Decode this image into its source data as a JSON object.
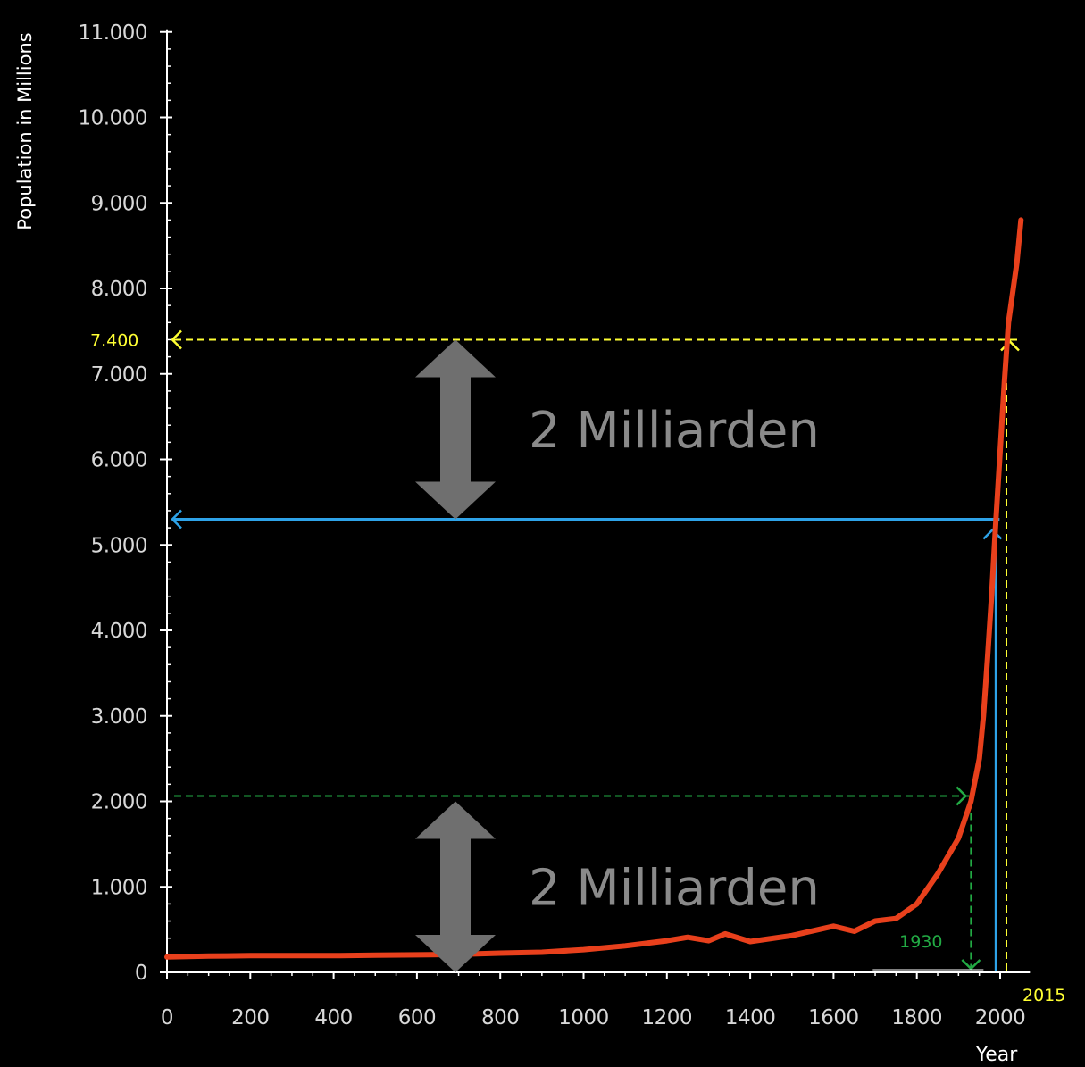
{
  "chart_data": {
    "type": "line",
    "xlabel": "Year",
    "ylabel": "Population in Millions",
    "xlim": [
      0,
      2050
    ],
    "ylim": [
      0,
      11000
    ],
    "x_ticks": [
      0,
      200,
      400,
      600,
      800,
      1000,
      1200,
      1400,
      1600,
      1800,
      2000
    ],
    "y_ticks": [
      0,
      1000,
      2000,
      3000,
      4000,
      5000,
      6000,
      7000,
      8000,
      9000,
      10000,
      11000
    ],
    "x_tick_labels": [
      "0",
      "200",
      "400",
      "600",
      "800",
      "1000",
      "1200",
      "1400",
      "1600",
      "1800",
      "2000"
    ],
    "y_tick_labels": [
      "0",
      "1.000",
      "2.000",
      "3.000",
      "4.000",
      "5.000",
      "6.000",
      "7.000",
      "8.000",
      "9.000",
      "10.000",
      "11.000"
    ],
    "grid": false,
    "series": [
      {
        "color": "#e8401c",
        "x": [
          0,
          100,
          200,
          300,
          400,
          500,
          600,
          700,
          800,
          900,
          1000,
          1100,
          1200,
          1250,
          1300,
          1340,
          1400,
          1500,
          1600,
          1650,
          1700,
          1750,
          1800,
          1850,
          1900,
          1930,
          1950,
          1960,
          1970,
          1980,
          1990,
          2000,
          2010,
          2020,
          2040,
          2050
        ],
        "y": [
          180,
          190,
          195,
          195,
          195,
          200,
          205,
          210,
          225,
          235,
          265,
          310,
          370,
          410,
          370,
          450,
          360,
          430,
          540,
          480,
          600,
          630,
          800,
          1150,
          1570,
          2000,
          2500,
          3000,
          3700,
          4450,
          5300,
          6100,
          6900,
          7600,
          8300,
          8800
        ]
      }
    ],
    "annotations": {
      "value_7400": {
        "text": "7.400",
        "x": 2015,
        "y": 7400,
        "color": "#ffff33"
      },
      "year_2015": {
        "text": "2015",
        "x": 2015,
        "color": "#ffff33"
      },
      "year_1930": {
        "text": "1930",
        "x": 1930,
        "y": 2000,
        "color": "#22aa44"
      },
      "ref_blue": {
        "x": 1990,
        "y": 5300,
        "color": "#2ea3e8"
      },
      "span_upper": {
        "text": "2 Milliarden",
        "y_from": 5300,
        "y_to": 7400,
        "color": "#6f6f6f"
      },
      "span_lower": {
        "text": "2 Milliarden",
        "y_from": 0,
        "y_to": 2000,
        "color": "#6f6f6f"
      }
    }
  }
}
